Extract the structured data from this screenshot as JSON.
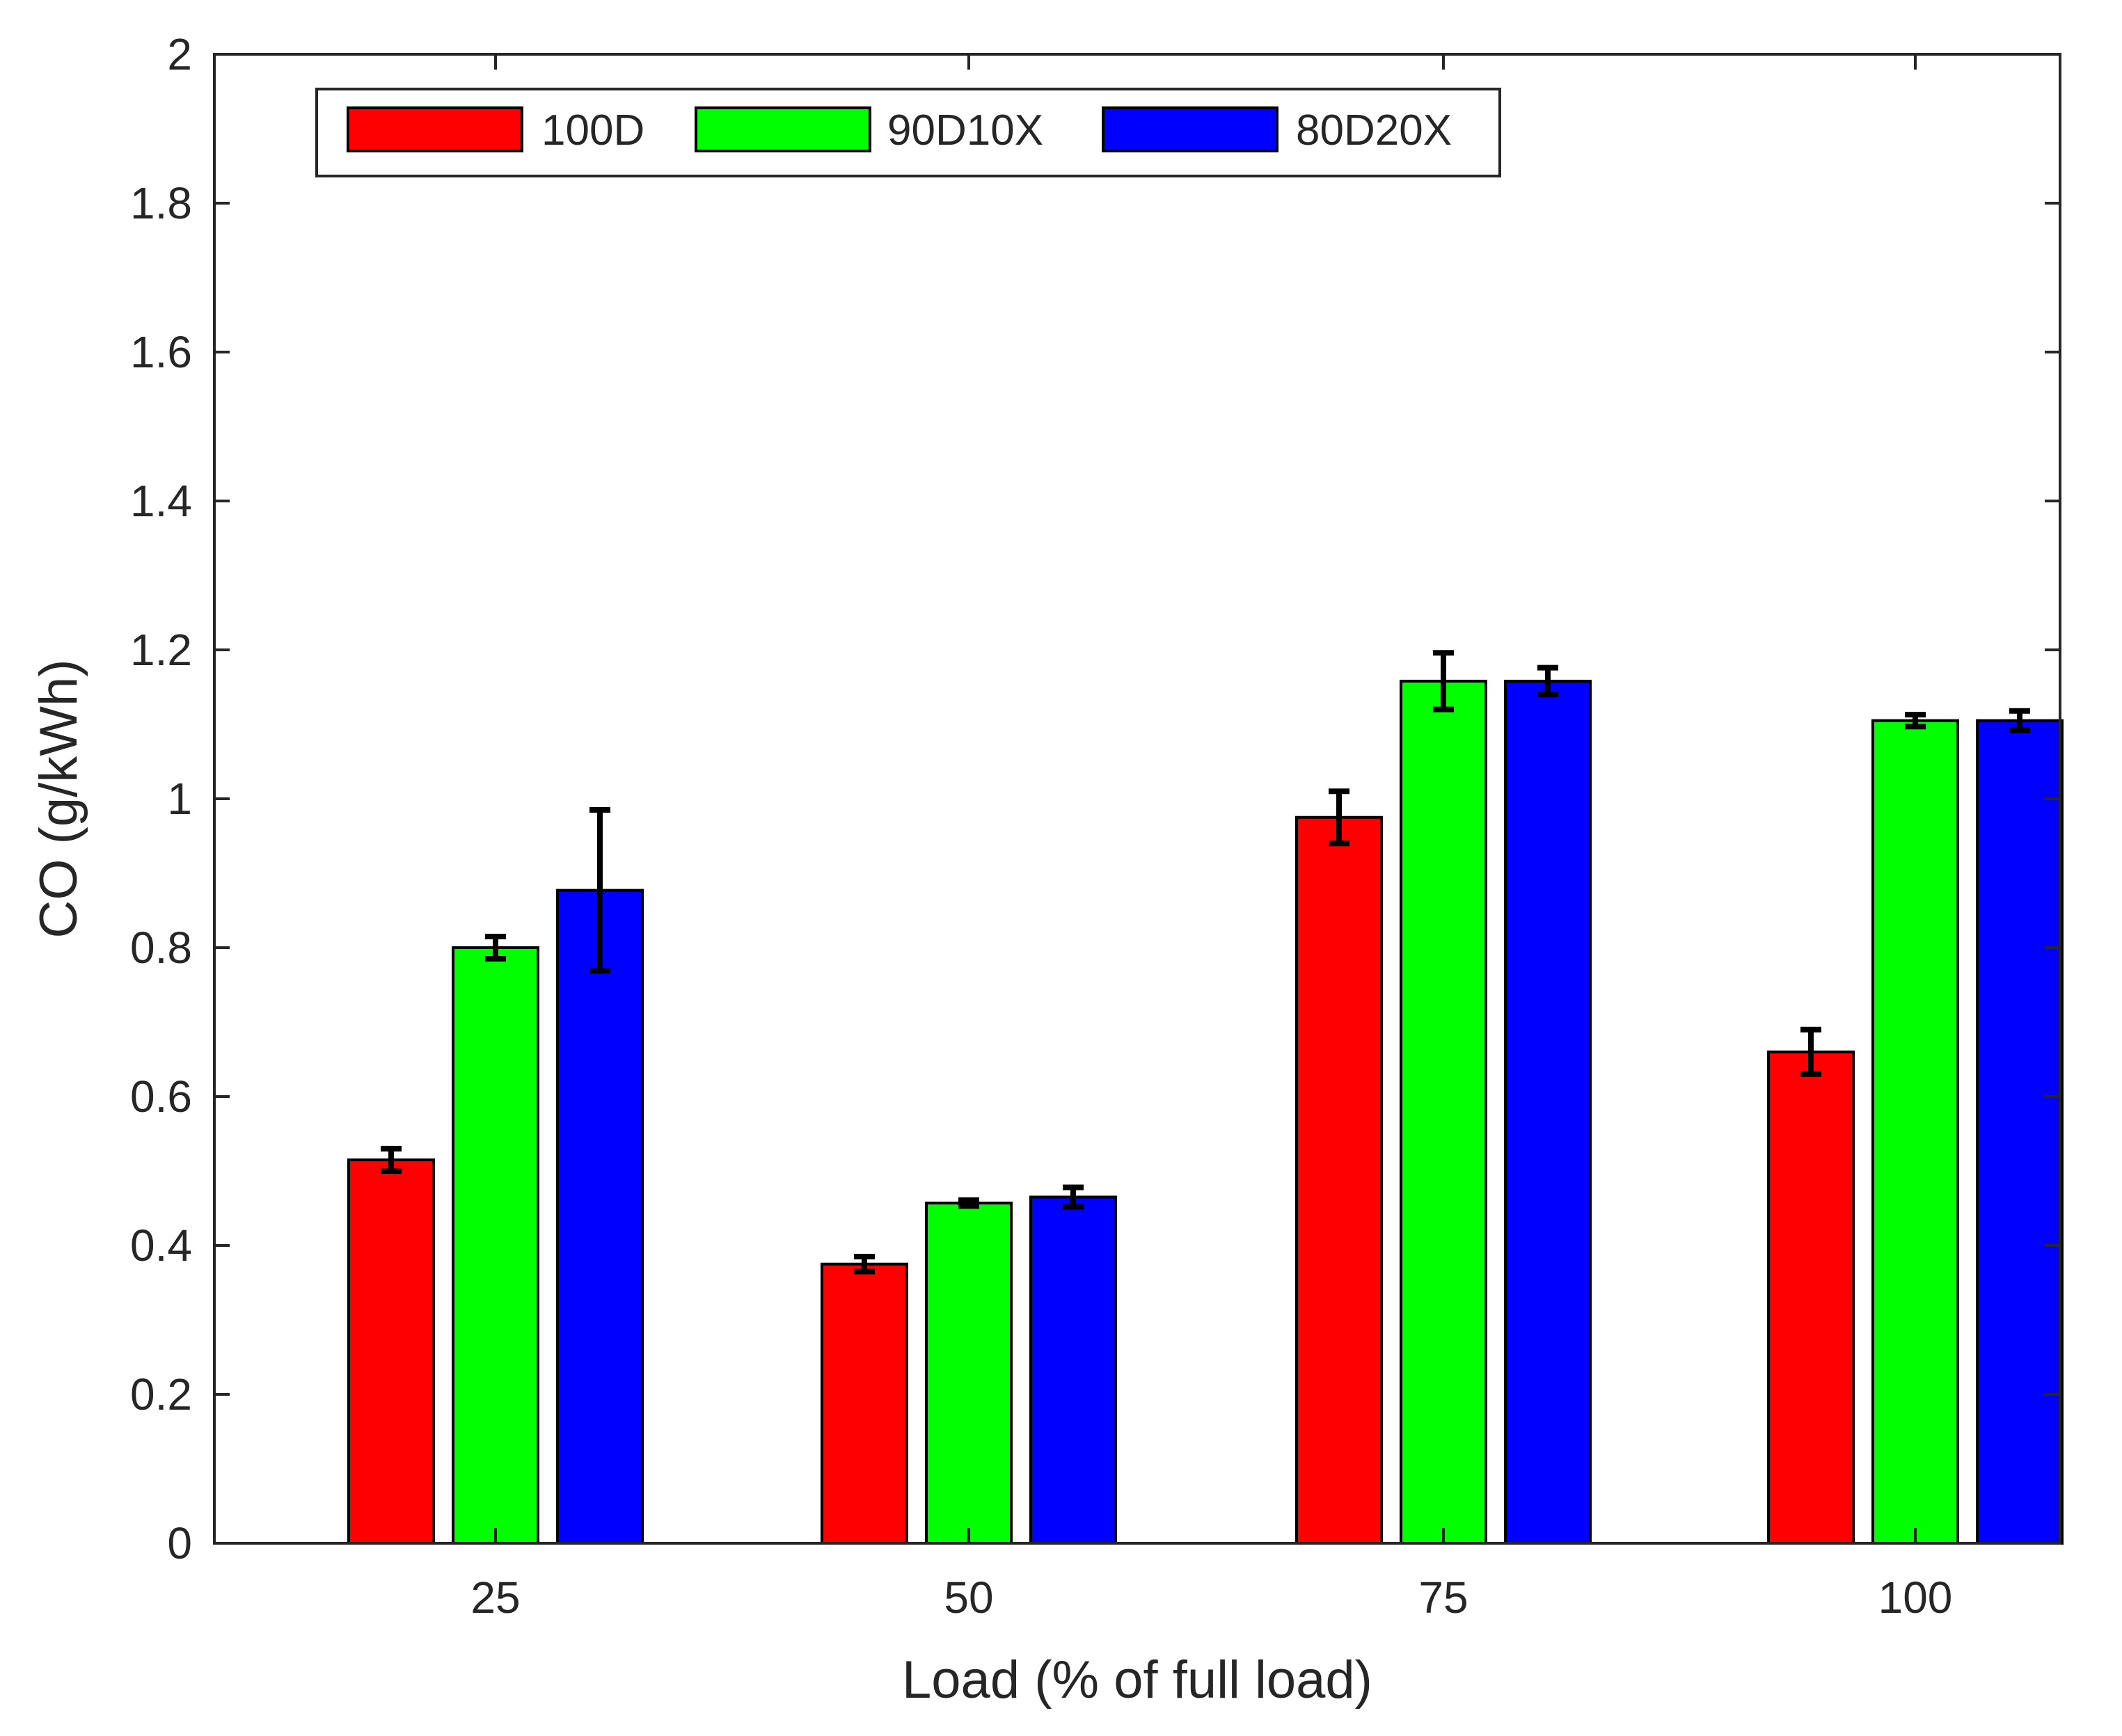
{
  "chart_data": {
    "type": "bar",
    "xlabel": "Load (% of full load)",
    "ylabel": "CO (g/kWh)",
    "ylim": [
      0,
      2
    ],
    "yticks": [
      "0",
      "0.2",
      "0.4",
      "0.6",
      "0.8",
      "1",
      "1.2",
      "1.4",
      "1.6",
      "1.8",
      "2"
    ],
    "categories": [
      "25",
      "50",
      "75",
      "100"
    ],
    "grid": false,
    "legend_position": "top-left",
    "series": [
      {
        "name": "100D",
        "color": "#ff0000",
        "values": [
          0.515,
          0.375,
          0.975,
          0.66
        ],
        "errors": [
          0.015,
          0.01,
          0.035,
          0.03
        ]
      },
      {
        "name": "90D10X",
        "color": "#00ff00",
        "values": [
          0.8,
          0.457,
          1.158,
          1.105
        ],
        "errors": [
          0.015,
          0.004,
          0.038,
          0.008
        ]
      },
      {
        "name": "80D20X",
        "color": "#0000ff",
        "values": [
          0.877,
          0.465,
          1.158,
          1.105
        ],
        "errors": [
          0.108,
          0.013,
          0.018,
          0.013
        ]
      }
    ]
  }
}
